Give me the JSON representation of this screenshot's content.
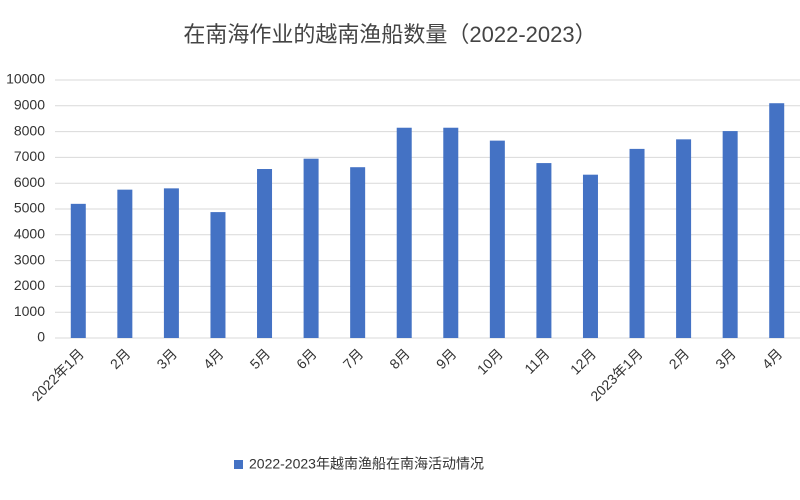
{
  "chart_data": {
    "type": "bar",
    "title": "在南海作业的越南渔船数量（2022-2023）",
    "categories": [
      "2022年1月",
      "2月",
      "3月",
      "4月",
      "5月",
      "6月",
      "7月",
      "8月",
      "9月",
      "10月",
      "11月",
      "12月",
      "2023年1月",
      "2月",
      "3月",
      "4月"
    ],
    "series": [
      {
        "name": "2022-2023年越南渔船在南海活动情况",
        "color": "#4472c4",
        "values": [
          5200,
          5750,
          5800,
          4880,
          6550,
          6950,
          6620,
          8150,
          8150,
          7650,
          6780,
          6330,
          7330,
          7700,
          8020,
          9100
        ]
      }
    ],
    "ylim": [
      0,
      10000
    ],
    "yticks": [
      0,
      1000,
      2000,
      3000,
      4000,
      5000,
      6000,
      7000,
      8000,
      9000,
      10000
    ],
    "grid": true,
    "legend": "bottom"
  }
}
